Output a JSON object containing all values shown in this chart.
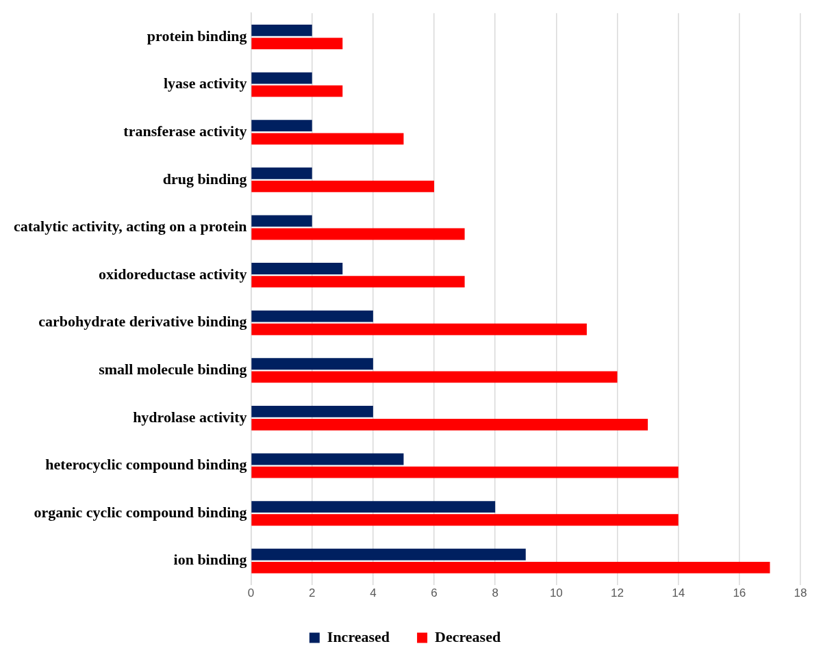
{
  "chart_data": {
    "type": "bar",
    "orientation": "horizontal",
    "categories": [
      "protein binding",
      "lyase activity",
      "transferase activity",
      "drug binding",
      "catalytic activity, acting on a protein",
      "oxidoreductase activity",
      "carbohydrate derivative binding",
      "small molecule binding",
      "hydrolase activity",
      "heterocyclic compound binding",
      "organic cyclic compound binding",
      "ion binding"
    ],
    "series": [
      {
        "name": "Increased",
        "color": "#002060",
        "values": [
          2,
          2,
          2,
          2,
          2,
          3,
          4,
          4,
          4,
          5,
          8,
          9
        ]
      },
      {
        "name": "Decreased",
        "color": "#ff0000",
        "values": [
          3,
          3,
          5,
          6,
          7,
          7,
          11,
          12,
          13,
          14,
          14,
          17
        ]
      }
    ],
    "xlim": [
      0,
      18
    ],
    "xticks": [
      0,
      2,
      4,
      6,
      8,
      10,
      12,
      14,
      16,
      18
    ],
    "grid": "x",
    "legend": "bottom"
  }
}
